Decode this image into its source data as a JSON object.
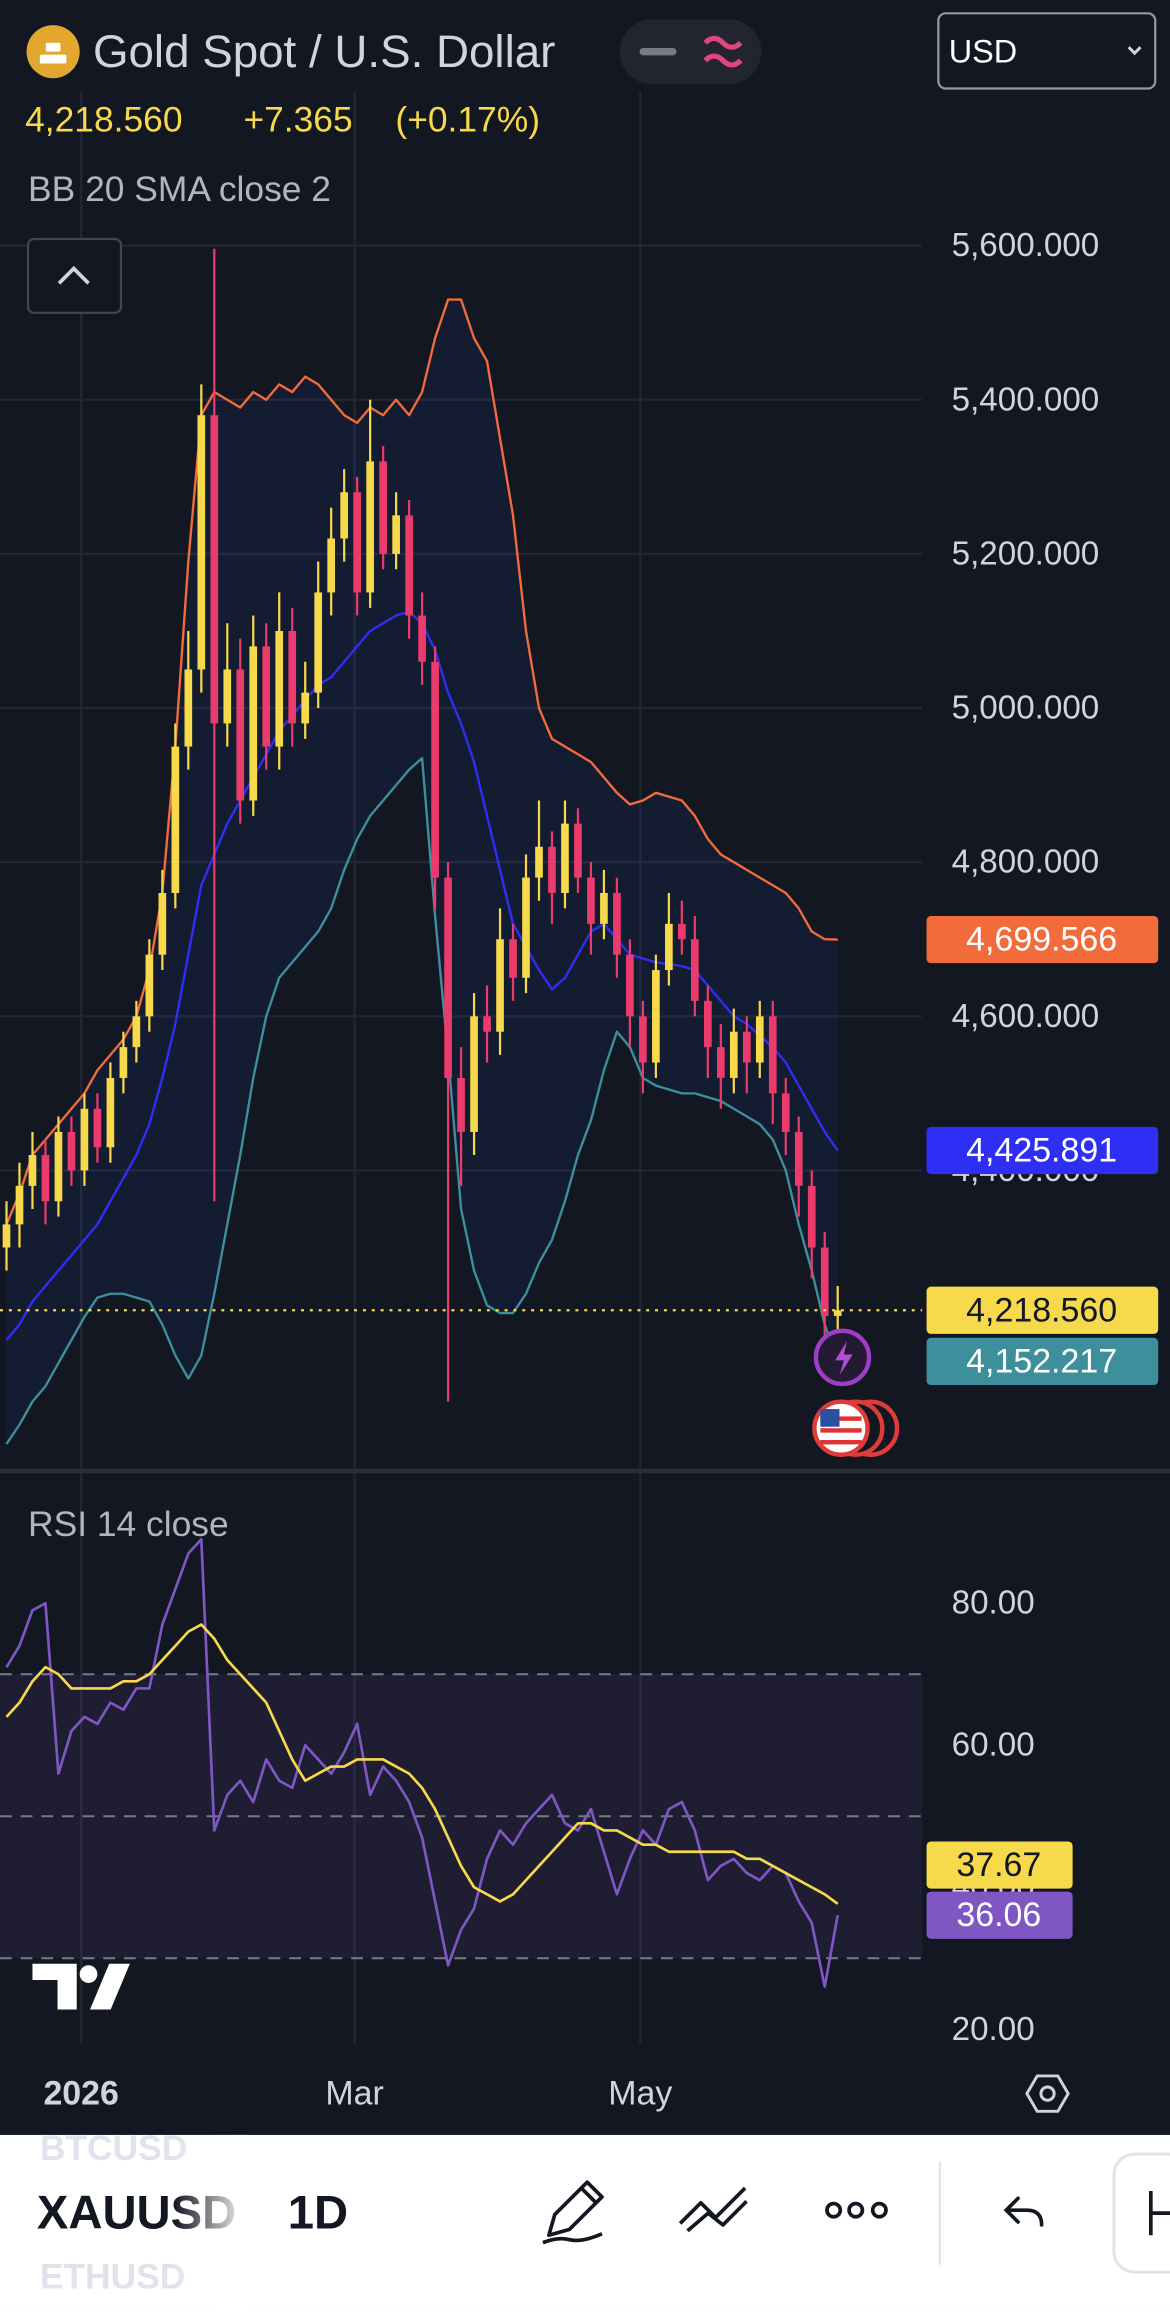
{
  "header": {
    "title": "Gold Spot / U.S. Dollar",
    "currency": "USD",
    "price": "4,218.560",
    "change": "+7.365",
    "change_pct": "(+0.17%)"
  },
  "chart_data": [
    {
      "type": "candlestick",
      "indicator": "BB 20 SMA close 2",
      "x": [
        0,
        1,
        2,
        3,
        4,
        5,
        6,
        7,
        8,
        9,
        10,
        11,
        12,
        13,
        14,
        15,
        16,
        17,
        18,
        19,
        20,
        21,
        22,
        23,
        24,
        25,
        26,
        27,
        28,
        29,
        30,
        31,
        32,
        33,
        34,
        35,
        36,
        37,
        38,
        39,
        40,
        41,
        42,
        43,
        44,
        45,
        46,
        47,
        48,
        49,
        50,
        51,
        52,
        53,
        54,
        55,
        56,
        57,
        58,
        59,
        60,
        61,
        62,
        63,
        64
      ],
      "xlim": [
        -0.5,
        70.5
      ],
      "xticks": [
        {
          "value": 5.75,
          "label": "2026"
        },
        {
          "value": 26.8,
          "label": "Mar"
        },
        {
          "value": 48.8,
          "label": "May"
        }
      ],
      "ylim": [
        4010,
        5800
      ],
      "yticks": [
        {
          "value": 4400,
          "label": "4,400.000"
        },
        {
          "value": 4600,
          "label": "4,600.000"
        },
        {
          "value": 4800,
          "label": "4,800.000"
        },
        {
          "value": 5000,
          "label": "5,000.000"
        },
        {
          "value": 5200,
          "label": "5,200.000"
        },
        {
          "value": 5400,
          "label": "5,400.000"
        },
        {
          "value": 5600,
          "label": "5,600.000"
        }
      ],
      "grid": true,
      "up_color": "#f7d94c",
      "down_color": "#ea3b6c",
      "open": [
        4300,
        4330,
        4380,
        4420,
        4360,
        4450,
        4400,
        4480,
        4430,
        4520,
        4560,
        4600,
        4680,
        4760,
        4950,
        5050,
        5380,
        4980,
        5050,
        4880,
        5080,
        4950,
        5100,
        4980,
        5020,
        5150,
        5220,
        5280,
        5150,
        5320,
        5200,
        5250,
        5120,
        5060,
        4780,
        4520,
        4450,
        4600,
        4580,
        4700,
        4650,
        4780,
        4820,
        4760,
        4850,
        4780,
        4720,
        4760,
        4680,
        4600,
        4540,
        4660,
        4720,
        4700,
        4620,
        4560,
        4520,
        4580,
        4540,
        4600,
        4500,
        4450,
        4380,
        4300,
        4211.195
      ],
      "high": [
        4360,
        4410,
        4450,
        4440,
        4470,
        4470,
        4500,
        4500,
        4540,
        4580,
        4620,
        4700,
        4790,
        4980,
        5100,
        5420,
        5596,
        5110,
        5090,
        5120,
        5110,
        5150,
        5130,
        5060,
        5190,
        5260,
        5310,
        5300,
        5400,
        5340,
        5280,
        5270,
        5150,
        5080,
        4800,
        4560,
        4630,
        4640,
        4740,
        4720,
        4810,
        4880,
        4840,
        4880,
        4870,
        4800,
        4790,
        4780,
        4700,
        4620,
        4680,
        4760,
        4750,
        4730,
        4640,
        4590,
        4610,
        4600,
        4620,
        4620,
        4520,
        4470,
        4400,
        4320,
        4250
      ],
      "low": [
        4270,
        4300,
        4350,
        4330,
        4340,
        4380,
        4380,
        4410,
        4410,
        4500,
        4540,
        4580,
        4660,
        4740,
        4920,
        5020,
        4360,
        4950,
        4850,
        4860,
        4920,
        4920,
        4950,
        4960,
        5000,
        5120,
        5190,
        5120,
        5130,
        5180,
        5180,
        5090,
        5030,
        4740,
        4100,
        4380,
        4420,
        4540,
        4550,
        4620,
        4630,
        4750,
        4720,
        4740,
        4760,
        4680,
        4700,
        4650,
        4560,
        4500,
        4520,
        4640,
        4680,
        4600,
        4520,
        4480,
        4500,
        4500,
        4520,
        4460,
        4420,
        4340,
        4260,
        4180,
        4190
      ],
      "close": [
        4330,
        4380,
        4420,
        4360,
        4450,
        4400,
        4480,
        4430,
        4520,
        4560,
        4600,
        4680,
        4760,
        4950,
        5050,
        5380,
        4980,
        5050,
        4880,
        5080,
        4950,
        5100,
        4980,
        5020,
        5150,
        5220,
        5280,
        5150,
        5320,
        5200,
        5250,
        5120,
        5060,
        4780,
        4520,
        4450,
        4600,
        4580,
        4700,
        4650,
        4780,
        4820,
        4760,
        4850,
        4780,
        4720,
        4760,
        4680,
        4600,
        4540,
        4660,
        4720,
        4700,
        4620,
        4560,
        4520,
        4580,
        4540,
        4600,
        4500,
        4450,
        4380,
        4300,
        4211.195,
        4218.56
      ],
      "close_label": "4,218.560",
      "series": [
        {
          "color": "#f26b3a",
          "value_label": "4,699.566",
          "values": [
            4330,
            4370,
            4420,
            4440,
            4460,
            4480,
            4500,
            4530,
            4550,
            4570,
            4600,
            4660,
            4760,
            4950,
            5190,
            5380,
            5410,
            5400,
            5390,
            5410,
            5400,
            5420,
            5410,
            5430,
            5420,
            5400,
            5380,
            5370,
            5390,
            5380,
            5400,
            5380,
            5410,
            5480,
            5530,
            5530,
            5480,
            5450,
            5350,
            5250,
            5100,
            5000,
            4960,
            4950,
            4940,
            4930,
            4910,
            4890,
            4875,
            4880,
            4890,
            4885,
            4880,
            4860,
            4830,
            4810,
            4800,
            4790,
            4780,
            4770,
            4760,
            4740,
            4710,
            4700,
            4699.566
          ]
        },
        {
          "color": "#2e2ef5",
          "value_label": "4,425.891",
          "values": [
            4180,
            4200,
            4230,
            4250,
            4270,
            4290,
            4310,
            4330,
            4360,
            4390,
            4420,
            4460,
            4520,
            4590,
            4680,
            4770,
            4810,
            4850,
            4880,
            4910,
            4940,
            4970,
            4990,
            5010,
            5030,
            5040,
            5060,
            5080,
            5100,
            5110,
            5120,
            5125,
            5110,
            5075,
            5020,
            4980,
            4930,
            4860,
            4790,
            4720,
            4690,
            4660,
            4635,
            4650,
            4680,
            4710,
            4720,
            4700,
            4680,
            4675,
            4670,
            4668,
            4665,
            4660,
            4640,
            4620,
            4600,
            4590,
            4575,
            4560,
            4540,
            4510,
            4480,
            4450,
            4425.891
          ]
        },
        {
          "color": "#3e8f9c",
          "value_label": "4,152.217",
          "values": [
            4045,
            4070,
            4100,
            4120,
            4150,
            4180,
            4210,
            4235,
            4240,
            4240,
            4235,
            4230,
            4200,
            4160,
            4130,
            4160,
            4240,
            4330,
            4420,
            4520,
            4600,
            4650,
            4670,
            4690,
            4710,
            4740,
            4790,
            4830,
            4860,
            4880,
            4900,
            4920,
            4935,
            4730,
            4550,
            4350,
            4270,
            4225,
            4215,
            4215,
            4240,
            4280,
            4310,
            4360,
            4420,
            4465,
            4530,
            4580,
            4560,
            4520,
            4510,
            4505,
            4500,
            4500,
            4495,
            4490,
            4480,
            4470,
            4460,
            4440,
            4400,
            4330,
            4270,
            4200,
            4152.217
          ]
        }
      ]
    },
    {
      "type": "line",
      "title": "RSI 14 close",
      "ylim": [
        18,
        98
      ],
      "yticks": [
        {
          "value": 20,
          "label": "20.00"
        },
        {
          "value": 40,
          "label": "40.00"
        },
        {
          "value": 60,
          "label": "60.00"
        },
        {
          "value": 80,
          "label": "80.00"
        }
      ],
      "levels": [
        30,
        50,
        70
      ],
      "series": [
        {
          "color": "#7e57c2",
          "value_label": "36.06",
          "values": [
            71,
            74,
            79,
            80,
            56,
            62,
            64,
            63,
            66,
            65,
            68,
            68,
            77,
            82,
            87,
            89,
            48,
            53,
            55,
            52,
            58,
            55,
            54,
            60,
            58,
            56,
            59,
            63,
            53,
            57,
            55,
            52,
            47,
            38,
            29,
            34,
            37,
            44,
            48,
            46,
            49,
            51,
            53,
            49,
            48,
            51,
            45,
            39,
            44,
            48,
            46,
            51,
            52,
            48,
            41,
            43,
            44,
            42,
            41,
            43,
            42,
            38,
            35,
            26,
            36.06
          ]
        },
        {
          "color": "#f7d94c",
          "value_label": "37.67",
          "values": [
            64,
            66,
            69,
            71,
            70,
            68,
            68,
            68,
            68,
            69,
            69,
            70,
            72,
            74,
            76,
            77,
            75,
            72,
            70,
            68,
            66,
            62,
            58,
            55,
            56,
            57,
            57,
            58,
            58,
            58,
            57,
            56,
            54,
            51,
            47,
            43,
            40,
            39,
            38,
            39,
            41,
            43,
            45,
            47,
            49,
            49,
            48,
            48,
            47,
            46,
            46,
            45,
            45,
            45,
            45,
            45,
            45,
            44,
            44,
            43,
            42,
            41,
            40,
            39,
            37.67
          ]
        }
      ]
    }
  ],
  "toolbar": {
    "symbol": "XAUUSD",
    "interval": "1D",
    "previous_symbol": "BTCUSD",
    "next_symbol": "ETHUSD"
  }
}
